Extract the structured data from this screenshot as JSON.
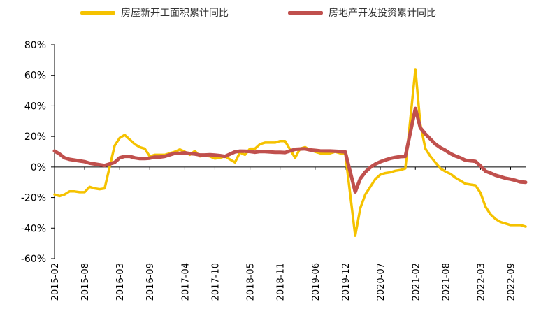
{
  "chart_data": {
    "type": "line",
    "title": "",
    "xlabel": "",
    "ylabel": "",
    "ylim": [
      -60,
      80
    ],
    "y_ticks": [
      "80%",
      "60%",
      "40%",
      "20%",
      "0%",
      "-20%",
      "-40%",
      "-60%"
    ],
    "x_tick_labels": [
      "2015-02",
      "2015-08",
      "2016-03",
      "2016-09",
      "2017-04",
      "2017-10",
      "2018-05",
      "2018-11",
      "2019-06",
      "2019-12",
      "2020-07",
      "2021-02",
      "2021-08",
      "2022-03",
      "2022-09"
    ],
    "x_start": "2015-02",
    "x_end": "2022-12",
    "grid": false,
    "legend_position": "top",
    "series": [
      {
        "name": "房屋新开工面积累计同比",
        "color": "#F5C200",
        "points": [
          [
            "2015-02",
            -18
          ],
          [
            "2015-03",
            -19
          ],
          [
            "2015-04",
            -18
          ],
          [
            "2015-05",
            -16
          ],
          [
            "2015-06",
            -16
          ],
          [
            "2015-07",
            -16.5
          ],
          [
            "2015-08",
            -16.5
          ],
          [
            "2015-09",
            -13
          ],
          [
            "2015-10",
            -14
          ],
          [
            "2015-11",
            -14.5
          ],
          [
            "2015-12",
            -14
          ],
          [
            "2016-02",
            14
          ],
          [
            "2016-03",
            19
          ],
          [
            "2016-04",
            21
          ],
          [
            "2016-05",
            18
          ],
          [
            "2016-06",
            15
          ],
          [
            "2016-07",
            13
          ],
          [
            "2016-08",
            12
          ],
          [
            "2016-09",
            7
          ],
          [
            "2016-10",
            8
          ],
          [
            "2016-11",
            8
          ],
          [
            "2016-12",
            8
          ],
          [
            "2017-02",
            10
          ],
          [
            "2017-03",
            11.5
          ],
          [
            "2017-04",
            10
          ],
          [
            "2017-05",
            8
          ],
          [
            "2017-06",
            10.5
          ],
          [
            "2017-07",
            7
          ],
          [
            "2017-08",
            7.5
          ],
          [
            "2017-09",
            7
          ],
          [
            "2017-10",
            5.5
          ],
          [
            "2017-11",
            6
          ],
          [
            "2017-12",
            7
          ],
          [
            "2018-02",
            3
          ],
          [
            "2018-03",
            9.5
          ],
          [
            "2018-04",
            8
          ],
          [
            "2018-05",
            12
          ],
          [
            "2018-06",
            12
          ],
          [
            "2018-07",
            15
          ],
          [
            "2018-08",
            16
          ],
          [
            "2018-09",
            16
          ],
          [
            "2018-10",
            16
          ],
          [
            "2018-11",
            17
          ],
          [
            "2018-12",
            17
          ],
          [
            "2019-02",
            6
          ],
          [
            "2019-03",
            12
          ],
          [
            "2019-04",
            13
          ],
          [
            "2019-05",
            11
          ],
          [
            "2019-06",
            10
          ],
          [
            "2019-07",
            9
          ],
          [
            "2019-08",
            9
          ],
          [
            "2019-09",
            9
          ],
          [
            "2019-10",
            10
          ],
          [
            "2019-11",
            9
          ],
          [
            "2019-12",
            9
          ],
          [
            "2020-02",
            -45
          ],
          [
            "2020-03",
            -27
          ],
          [
            "2020-04",
            -18
          ],
          [
            "2020-05",
            -13
          ],
          [
            "2020-06",
            -8
          ],
          [
            "2020-07",
            -5
          ],
          [
            "2020-08",
            -4
          ],
          [
            "2020-09",
            -3.5
          ],
          [
            "2020-10",
            -2.5
          ],
          [
            "2020-11",
            -2
          ],
          [
            "2020-12",
            -1
          ],
          [
            "2021-02",
            64
          ],
          [
            "2021-03",
            28
          ],
          [
            "2021-04",
            12
          ],
          [
            "2021-05",
            7
          ],
          [
            "2021-06",
            3
          ],
          [
            "2021-07",
            -1
          ],
          [
            "2021-08",
            -3
          ],
          [
            "2021-09",
            -4.5
          ],
          [
            "2021-10",
            -7
          ],
          [
            "2021-11",
            -9
          ],
          [
            "2021-12",
            -11
          ],
          [
            "2022-02",
            -12
          ],
          [
            "2022-03",
            -17
          ],
          [
            "2022-04",
            -26
          ],
          [
            "2022-05",
            -31
          ],
          [
            "2022-06",
            -34
          ],
          [
            "2022-07",
            -36
          ],
          [
            "2022-08",
            -37
          ],
          [
            "2022-09",
            -38
          ],
          [
            "2022-10",
            -38
          ],
          [
            "2022-11",
            -38
          ],
          [
            "2022-12",
            -39
          ]
        ]
      },
      {
        "name": "房地产开发投资累计同比",
        "color": "#C0504D",
        "points": [
          [
            "2015-02",
            10.5
          ],
          [
            "2015-03",
            8.5
          ],
          [
            "2015-04",
            6
          ],
          [
            "2015-05",
            5
          ],
          [
            "2015-06",
            4.5
          ],
          [
            "2015-07",
            4
          ],
          [
            "2015-08",
            3.5
          ],
          [
            "2015-09",
            2.5
          ],
          [
            "2015-10",
            2
          ],
          [
            "2015-11",
            1.5
          ],
          [
            "2015-12",
            1
          ],
          [
            "2016-02",
            3
          ],
          [
            "2016-03",
            6
          ],
          [
            "2016-04",
            7
          ],
          [
            "2016-05",
            7
          ],
          [
            "2016-06",
            6
          ],
          [
            "2016-07",
            5.5
          ],
          [
            "2016-08",
            5.5
          ],
          [
            "2016-09",
            5.8
          ],
          [
            "2016-10",
            6.5
          ],
          [
            "2016-11",
            6.5
          ],
          [
            "2016-12",
            7
          ],
          [
            "2017-02",
            9
          ],
          [
            "2017-03",
            9
          ],
          [
            "2017-04",
            9.3
          ],
          [
            "2017-05",
            8.8
          ],
          [
            "2017-06",
            8.5
          ],
          [
            "2017-07",
            7.9
          ],
          [
            "2017-08",
            7.9
          ],
          [
            "2017-09",
            8.1
          ],
          [
            "2017-10",
            7.8
          ],
          [
            "2017-11",
            7.5
          ],
          [
            "2017-12",
            7
          ],
          [
            "2018-02",
            9.9
          ],
          [
            "2018-03",
            10.4
          ],
          [
            "2018-04",
            10.3
          ],
          [
            "2018-05",
            10.2
          ],
          [
            "2018-06",
            9.7
          ],
          [
            "2018-07",
            10.2
          ],
          [
            "2018-08",
            10.1
          ],
          [
            "2018-09",
            9.9
          ],
          [
            "2018-10",
            9.7
          ],
          [
            "2018-11",
            9.7
          ],
          [
            "2018-12",
            9.5
          ],
          [
            "2019-02",
            11.6
          ],
          [
            "2019-03",
            11.8
          ],
          [
            "2019-04",
            11.9
          ],
          [
            "2019-05",
            11.2
          ],
          [
            "2019-06",
            10.9
          ],
          [
            "2019-07",
            10.6
          ],
          [
            "2019-08",
            10.5
          ],
          [
            "2019-09",
            10.5
          ],
          [
            "2019-10",
            10.3
          ],
          [
            "2019-11",
            10.2
          ],
          [
            "2019-12",
            9.9
          ],
          [
            "2020-02",
            -16.3
          ],
          [
            "2020-03",
            -7.7
          ],
          [
            "2020-04",
            -3.3
          ],
          [
            "2020-05",
            -0.3
          ],
          [
            "2020-06",
            1.9
          ],
          [
            "2020-07",
            3.4
          ],
          [
            "2020-08",
            4.6
          ],
          [
            "2020-09",
            5.6
          ],
          [
            "2020-10",
            6.3
          ],
          [
            "2020-11",
            6.8
          ],
          [
            "2020-12",
            7
          ],
          [
            "2021-02",
            38.3
          ],
          [
            "2021-03",
            25.6
          ],
          [
            "2021-04",
            21.6
          ],
          [
            "2021-05",
            18.3
          ],
          [
            "2021-06",
            15
          ],
          [
            "2021-07",
            12.7
          ],
          [
            "2021-08",
            10.9
          ],
          [
            "2021-09",
            8.8
          ],
          [
            "2021-10",
            7.2
          ],
          [
            "2021-11",
            6
          ],
          [
            "2021-12",
            4.4
          ],
          [
            "2022-02",
            3.7
          ],
          [
            "2022-03",
            0.7
          ],
          [
            "2022-04",
            -2.7
          ],
          [
            "2022-05",
            -4
          ],
          [
            "2022-06",
            -5.4
          ],
          [
            "2022-07",
            -6.4
          ],
          [
            "2022-08",
            -7.4
          ],
          [
            "2022-09",
            -8
          ],
          [
            "2022-10",
            -8.8
          ],
          [
            "2022-11",
            -9.8
          ],
          [
            "2022-12",
            -10
          ]
        ]
      }
    ]
  }
}
